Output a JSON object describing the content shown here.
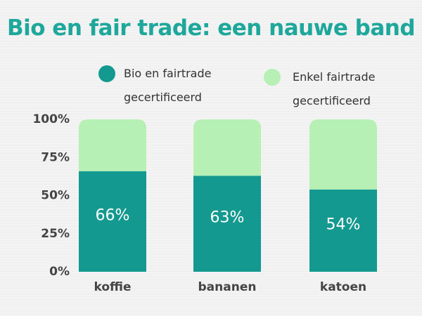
{
  "chart_data": {
    "type": "stacked_bar",
    "title": "Bio en fair trade: een nauwe band",
    "categories": [
      "koffie",
      "bananen",
      "katoen"
    ],
    "series": [
      {
        "name": "Bio en fairtrade gecertificeerd",
        "color": "#13998f",
        "values": [
          66,
          63,
          54
        ],
        "value_labels": [
          "66%",
          "63%",
          "54%"
        ]
      },
      {
        "name": "Enkel fairtrade gecertificeerd",
        "color": "#b6f0b4",
        "values": [
          34,
          37,
          46
        ]
      }
    ],
    "ylim": [
      0,
      100
    ],
    "yticks": [
      {
        "value": 0,
        "label": "0%"
      },
      {
        "value": 25,
        "label": "25%"
      },
      {
        "value": 50,
        "label": "50%"
      },
      {
        "value": 75,
        "label": "75%"
      },
      {
        "value": 100,
        "label": "100%"
      }
    ],
    "grid": false,
    "legend": "top"
  }
}
